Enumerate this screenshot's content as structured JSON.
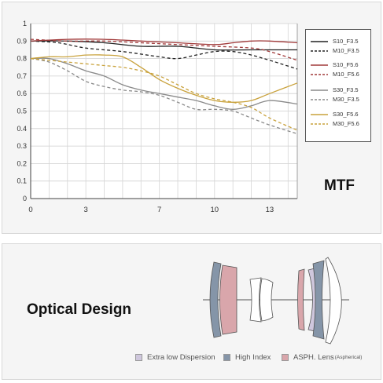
{
  "chart_data": {
    "type": "line",
    "title": "MTF",
    "xlim": [
      0,
      14.5
    ],
    "ylim": [
      0,
      1
    ],
    "xticks": [
      0,
      3,
      7,
      10,
      13
    ],
    "yticks": [
      "0",
      "0.1",
      "0.2",
      "0.3",
      "0.4",
      "0.5",
      "0.6",
      "0.7",
      "0.8",
      "0.9",
      "1"
    ],
    "grid": true,
    "legend": "right",
    "series": [
      {
        "name": "S10_F3.5",
        "color": "#222222",
        "dash": "solid",
        "x": [
          0,
          2,
          4,
          6,
          8,
          10,
          12,
          13.5,
          14.5
        ],
        "y": [
          0.9,
          0.9,
          0.89,
          0.87,
          0.87,
          0.85,
          0.85,
          0.85,
          0.85
        ]
      },
      {
        "name": "M10_F3.5",
        "color": "#222222",
        "dash": "dashed",
        "x": [
          0,
          1.5,
          3,
          5,
          7,
          8,
          9,
          10,
          11,
          12,
          13,
          14.5
        ],
        "y": [
          0.9,
          0.89,
          0.86,
          0.84,
          0.81,
          0.8,
          0.82,
          0.84,
          0.84,
          0.82,
          0.79,
          0.74
        ]
      },
      {
        "name": "S10_F5.6",
        "color": "#a13a3a",
        "dash": "solid",
        "x": [
          0,
          2,
          4,
          6,
          8,
          10,
          11,
          12,
          13,
          14.5
        ],
        "y": [
          0.9,
          0.91,
          0.91,
          0.9,
          0.89,
          0.88,
          0.89,
          0.9,
          0.9,
          0.89
        ]
      },
      {
        "name": "M10_F5.6",
        "color": "#a13a3a",
        "dash": "dashed",
        "x": [
          0,
          2,
          4,
          6,
          8,
          10,
          12,
          13,
          14.5
        ],
        "y": [
          0.91,
          0.9,
          0.9,
          0.89,
          0.88,
          0.87,
          0.86,
          0.84,
          0.79
        ]
      },
      {
        "name": "S30_F3.5",
        "color": "#8a8a8a",
        "dash": "solid",
        "x": [
          0,
          1,
          2,
          3,
          4,
          5,
          6,
          7,
          8,
          9,
          10,
          11,
          12,
          13,
          14.5
        ],
        "y": [
          0.8,
          0.8,
          0.77,
          0.73,
          0.7,
          0.65,
          0.62,
          0.6,
          0.58,
          0.56,
          0.53,
          0.51,
          0.53,
          0.56,
          0.54
        ]
      },
      {
        "name": "M30_F3.5",
        "color": "#8a8a8a",
        "dash": "dashed",
        "x": [
          0,
          1,
          2,
          3,
          4,
          5,
          6,
          7,
          8,
          9,
          10,
          11,
          12,
          13,
          14.5
        ],
        "y": [
          0.8,
          0.78,
          0.73,
          0.67,
          0.64,
          0.62,
          0.61,
          0.59,
          0.55,
          0.51,
          0.51,
          0.5,
          0.46,
          0.42,
          0.37
        ]
      },
      {
        "name": "S30_F5.6",
        "color": "#c9a23c",
        "dash": "solid",
        "x": [
          0,
          1,
          2,
          3,
          4,
          5,
          6,
          7,
          8,
          9,
          10,
          11,
          12,
          13,
          14.5
        ],
        "y": [
          0.8,
          0.81,
          0.81,
          0.82,
          0.82,
          0.81,
          0.75,
          0.68,
          0.63,
          0.59,
          0.56,
          0.55,
          0.56,
          0.6,
          0.66
        ]
      },
      {
        "name": "M30_F5.6",
        "color": "#c9a23c",
        "dash": "dashed",
        "x": [
          0,
          1,
          2,
          3,
          4,
          5,
          6,
          7,
          8,
          9,
          10,
          11,
          12,
          13,
          14.5
        ],
        "y": [
          0.8,
          0.79,
          0.78,
          0.77,
          0.76,
          0.75,
          0.73,
          0.7,
          0.65,
          0.6,
          0.57,
          0.55,
          0.52,
          0.46,
          0.39
        ]
      }
    ]
  },
  "optics": {
    "title": "Optical Design",
    "legend": [
      {
        "label": "Extra low Dispersion",
        "note": "",
        "color": "#cfc7dd"
      },
      {
        "label": "High Index",
        "note": "",
        "color": "#8595a8"
      },
      {
        "label": "ASPH. Lens",
        "note": "(Aspherical)",
        "color": "#d9a6ab"
      }
    ]
  }
}
